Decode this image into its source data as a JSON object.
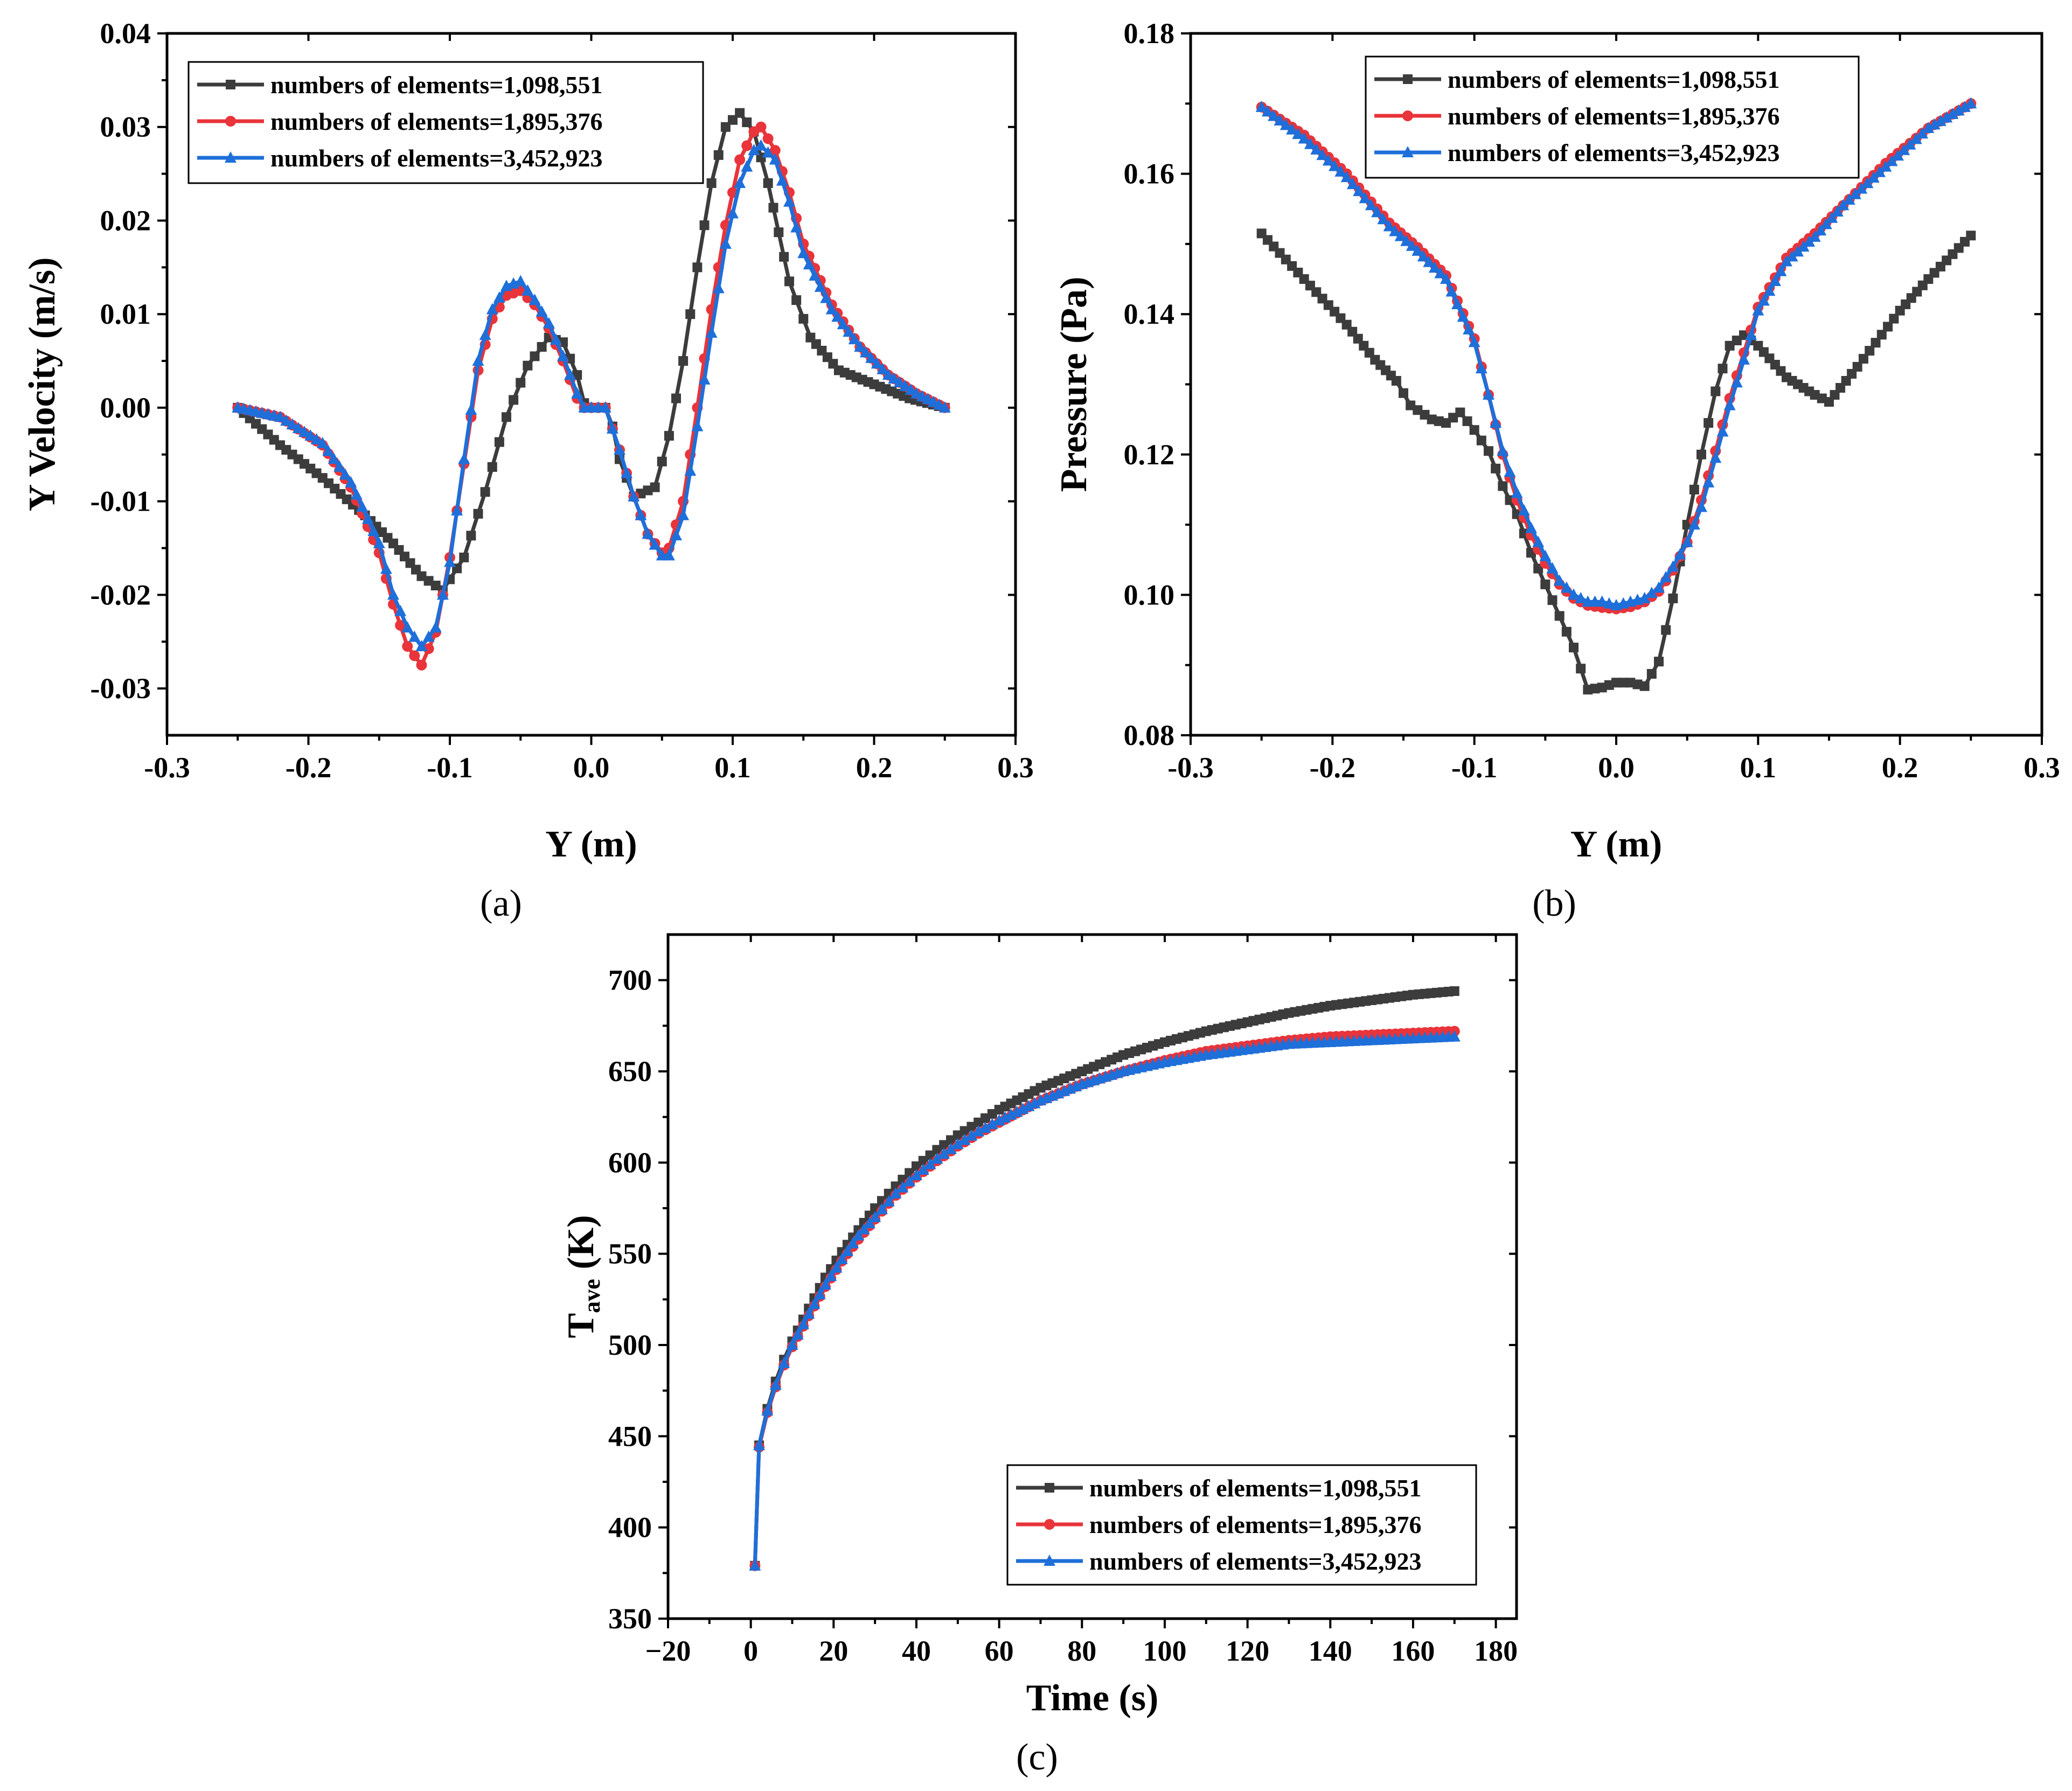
{
  "figure": {
    "colors": {
      "series_1": "#3c3c3c",
      "series_2": "#e8343a",
      "series_3": "#1e6fd9",
      "axes": "#000000"
    },
    "marker_shapes": [
      "square",
      "circle",
      "triangle"
    ]
  },
  "chart_data": [
    {
      "id": "a",
      "panel_label": "(a)",
      "type": "line",
      "title": "",
      "xlabel": "Y (m)",
      "ylabel": "Y Velocity (m/s)",
      "xlim": [
        -0.3,
        0.3
      ],
      "ylim": [
        -0.035,
        0.04
      ],
      "xticks": [
        -0.3,
        -0.2,
        -0.1,
        0.0,
        0.1,
        0.2,
        0.3
      ],
      "xtick_labels": [
        "-0.3",
        "-0.2",
        "-0.1",
        "0.0",
        "0.1",
        "0.2",
        "0.3"
      ],
      "yticks": [
        -0.03,
        -0.02,
        -0.01,
        0.0,
        0.01,
        0.02,
        0.03,
        0.04
      ],
      "ytick_labels": [
        "-0.03",
        "-0.02",
        "-0.01",
        "0.00",
        "0.01",
        "0.02",
        "0.03",
        "0.04"
      ],
      "legend_position": "top-left",
      "series": [
        {
          "name": "numbers of elements=1,098,551",
          "x": [
            -0.25,
            -0.22,
            -0.19,
            -0.16,
            -0.14,
            -0.12,
            -0.105,
            -0.09,
            -0.075,
            -0.06,
            -0.045,
            -0.03,
            -0.02,
            -0.01,
            -0.005,
            0.0,
            0.01,
            0.015,
            0.02,
            0.03,
            0.045,
            0.055,
            0.065,
            0.075,
            0.085,
            0.095,
            0.105,
            0.115,
            0.125,
            0.14,
            0.155,
            0.175,
            0.2,
            0.225,
            0.25
          ],
          "values": [
            0.0,
            -0.004,
            -0.0075,
            -0.0115,
            -0.0145,
            -0.018,
            -0.0195,
            -0.016,
            -0.009,
            -0.001,
            0.0045,
            0.0075,
            0.007,
            0.0035,
            0.0005,
            0.0,
            0.0,
            -0.002,
            -0.0055,
            -0.0095,
            -0.0085,
            -0.003,
            0.005,
            0.015,
            0.024,
            0.03,
            0.0315,
            0.0295,
            0.024,
            0.0135,
            0.0075,
            0.004,
            0.0025,
            0.001,
            0.0
          ]
        },
        {
          "name": "numbers of elements=1,895,376",
          "x": [
            -0.25,
            -0.22,
            -0.19,
            -0.17,
            -0.15,
            -0.14,
            -0.13,
            -0.12,
            -0.11,
            -0.1,
            -0.09,
            -0.08,
            -0.07,
            -0.06,
            -0.05,
            -0.04,
            -0.03,
            -0.02,
            -0.01,
            -0.005,
            0.0,
            0.01,
            0.02,
            0.03,
            0.04,
            0.05,
            0.055,
            0.065,
            0.075,
            0.085,
            0.095,
            0.105,
            0.115,
            0.12,
            0.13,
            0.14,
            0.15,
            0.17,
            0.19,
            0.21,
            0.23,
            0.25
          ],
          "values": [
            0.0,
            -0.001,
            -0.004,
            -0.0085,
            -0.0155,
            -0.021,
            -0.0255,
            -0.0275,
            -0.024,
            -0.016,
            -0.006,
            0.004,
            0.0095,
            0.012,
            0.0125,
            0.011,
            0.0085,
            0.005,
            0.001,
            0.0,
            0.0,
            0.0,
            -0.0045,
            -0.0095,
            -0.0135,
            -0.0155,
            -0.015,
            -0.01,
            0.0,
            0.0105,
            0.0195,
            0.0265,
            0.0295,
            0.03,
            0.0275,
            0.023,
            0.0175,
            0.011,
            0.0065,
            0.0035,
            0.0015,
            0.0
          ]
        },
        {
          "name": "numbers of elements=3,452,923",
          "x": [
            -0.25,
            -0.22,
            -0.19,
            -0.17,
            -0.15,
            -0.14,
            -0.13,
            -0.12,
            -0.11,
            -0.1,
            -0.09,
            -0.08,
            -0.07,
            -0.06,
            -0.05,
            -0.04,
            -0.03,
            -0.02,
            -0.01,
            -0.005,
            0.0,
            0.01,
            0.02,
            0.03,
            0.04,
            0.05,
            0.055,
            0.065,
            0.075,
            0.085,
            0.095,
            0.105,
            0.115,
            0.12,
            0.13,
            0.14,
            0.15,
            0.17,
            0.19,
            0.21,
            0.23,
            0.25
          ],
          "values": [
            0.0,
            -0.001,
            -0.0038,
            -0.008,
            -0.0145,
            -0.02,
            -0.0235,
            -0.0255,
            -0.0235,
            -0.0165,
            -0.0055,
            0.005,
            0.0105,
            0.013,
            0.0135,
            0.0115,
            0.009,
            0.0055,
            0.0015,
            0.0,
            0.0,
            0.0,
            -0.0045,
            -0.0095,
            -0.0135,
            -0.0158,
            -0.0158,
            -0.0115,
            -0.002,
            0.008,
            0.0175,
            0.024,
            0.0275,
            0.028,
            0.0265,
            0.022,
            0.0165,
            0.0105,
            0.0065,
            0.0035,
            0.0015,
            0.0
          ]
        }
      ]
    },
    {
      "id": "b",
      "panel_label": "(b)",
      "type": "line",
      "title": "",
      "xlabel": "Y (m)",
      "ylabel": "Pressure (Pa)",
      "xlim": [
        -0.3,
        0.3
      ],
      "ylim": [
        0.08,
        0.18
      ],
      "xticks": [
        -0.3,
        -0.2,
        -0.1,
        0.0,
        0.1,
        0.2,
        0.3
      ],
      "xtick_labels": [
        "-0.3",
        "-0.2",
        "-0.1",
        "0.0",
        "0.1",
        "0.2",
        "0.3"
      ],
      "yticks": [
        0.08,
        0.1,
        0.12,
        0.14,
        0.16,
        0.18
      ],
      "ytick_labels": [
        "0.08",
        "0.10",
        "0.12",
        "0.14",
        "0.16",
        "0.18"
      ],
      "legend_position": "top-right",
      "series": [
        {
          "name": "numbers of elements=1,098,551",
          "x": [
            -0.25,
            -0.22,
            -0.19,
            -0.17,
            -0.155,
            -0.145,
            -0.13,
            -0.12,
            -0.11,
            -0.1,
            -0.09,
            -0.08,
            -0.07,
            -0.06,
            -0.05,
            -0.04,
            -0.03,
            -0.02,
            -0.01,
            0.0,
            0.01,
            0.02,
            0.03,
            0.04,
            0.05,
            0.06,
            0.07,
            0.08,
            0.09,
            0.1,
            0.12,
            0.14,
            0.15,
            0.17,
            0.2,
            0.22,
            0.25
          ],
          "values": [
            0.1515,
            0.145,
            0.1385,
            0.1335,
            0.1305,
            0.127,
            0.125,
            0.1245,
            0.126,
            0.1235,
            0.1205,
            0.1155,
            0.1115,
            0.106,
            0.1015,
            0.097,
            0.0925,
            0.0865,
            0.0868,
            0.0875,
            0.0875,
            0.087,
            0.0905,
            0.0995,
            0.11,
            0.12,
            0.129,
            0.1355,
            0.137,
            0.1355,
            0.131,
            0.1285,
            0.1275,
            0.1325,
            0.1405,
            0.145,
            0.1512
          ]
        },
        {
          "name": "numbers of elements=1,895,376",
          "x": [
            -0.25,
            -0.22,
            -0.19,
            -0.16,
            -0.14,
            -0.12,
            -0.1,
            -0.09,
            -0.08,
            -0.07,
            -0.06,
            -0.05,
            -0.04,
            -0.03,
            -0.02,
            -0.01,
            0.0,
            0.01,
            0.02,
            0.03,
            0.04,
            0.05,
            0.06,
            0.07,
            0.08,
            0.09,
            0.1,
            0.12,
            0.14,
            0.16,
            0.19,
            0.22,
            0.25
          ],
          "values": [
            0.1695,
            0.1655,
            0.16,
            0.153,
            0.1495,
            0.1455,
            0.1365,
            0.1285,
            0.12,
            0.1135,
            0.1085,
            0.1045,
            0.1015,
            0.0995,
            0.0985,
            0.0982,
            0.098,
            0.0983,
            0.099,
            0.1005,
            0.1035,
            0.1075,
            0.1135,
            0.1205,
            0.128,
            0.1345,
            0.141,
            0.148,
            0.1515,
            0.1555,
            0.1615,
            0.1665,
            0.17
          ]
        },
        {
          "name": "numbers of elements=3,452,923",
          "x": [
            -0.25,
            -0.22,
            -0.19,
            -0.16,
            -0.14,
            -0.12,
            -0.1,
            -0.09,
            -0.08,
            -0.07,
            -0.06,
            -0.05,
            -0.04,
            -0.03,
            -0.02,
            -0.01,
            0.0,
            0.01,
            0.02,
            0.03,
            0.04,
            0.05,
            0.06,
            0.07,
            0.08,
            0.09,
            0.1,
            0.12,
            0.14,
            0.16,
            0.19,
            0.22,
            0.25
          ],
          "values": [
            0.1695,
            0.165,
            0.1595,
            0.1525,
            0.149,
            0.145,
            0.136,
            0.1285,
            0.1205,
            0.1145,
            0.1095,
            0.1055,
            0.102,
            0.1,
            0.099,
            0.099,
            0.0985,
            0.099,
            0.0995,
            0.101,
            0.104,
            0.1075,
            0.1125,
            0.1195,
            0.127,
            0.1335,
            0.1405,
            0.1475,
            0.151,
            0.1555,
            0.161,
            0.1665,
            0.17
          ]
        }
      ]
    },
    {
      "id": "c",
      "panel_label": "(c)",
      "type": "line",
      "title": "",
      "xlabel": "Time (s)",
      "ylabel_main": "T",
      "ylabel_sub": "ave",
      "ylabel_unit": " (K)",
      "xlim": [
        -20,
        185
      ],
      "ylim": [
        350,
        725
      ],
      "xticks": [
        -20,
        0,
        20,
        40,
        60,
        80,
        100,
        120,
        140,
        160,
        180
      ],
      "xtick_labels": [
        "−20",
        "0",
        "20",
        "40",
        "60",
        "80",
        "100",
        "120",
        "140",
        "160",
        "180"
      ],
      "yticks": [
        350,
        400,
        450,
        500,
        550,
        600,
        650,
        700
      ],
      "ytick_labels": [
        "350",
        "400",
        "450",
        "500",
        "550",
        "600",
        "650",
        "700"
      ],
      "legend_position": "bottom-right",
      "series": [
        {
          "name": "numbers of elements=1,098,551",
          "x": [
            1,
            2,
            4,
            6,
            8,
            10,
            14,
            18,
            22,
            26,
            30,
            35,
            40,
            45,
            50,
            55,
            60,
            70,
            80,
            90,
            100,
            110,
            120,
            130,
            140,
            150,
            160,
            170
          ],
          "values": [
            379,
            445,
            465,
            480,
            492,
            502,
            520,
            537,
            551,
            563,
            575,
            587,
            598,
            607,
            615,
            622,
            629,
            641,
            650,
            659,
            666,
            672,
            677,
            682,
            686,
            689,
            692,
            694
          ]
        },
        {
          "name": "numbers of elements=1,895,376",
          "x": [
            1,
            2,
            4,
            6,
            8,
            10,
            14,
            18,
            22,
            26,
            30,
            35,
            40,
            45,
            50,
            55,
            60,
            70,
            80,
            90,
            100,
            110,
            120,
            130,
            140,
            150,
            160,
            170
          ],
          "values": [
            379,
            444,
            463,
            477,
            489,
            499,
            516,
            532,
            546,
            558,
            569,
            582,
            592,
            601,
            609,
            616,
            622,
            634,
            643,
            650,
            656,
            661,
            664,
            667,
            669,
            670,
            671,
            672
          ]
        },
        {
          "name": "numbers of elements=3,452,923",
          "x": [
            1,
            2,
            4,
            6,
            8,
            10,
            14,
            18,
            22,
            26,
            30,
            35,
            40,
            45,
            50,
            55,
            60,
            70,
            80,
            90,
            100,
            110,
            120,
            130,
            140,
            150,
            160,
            170
          ],
          "values": [
            379,
            445,
            464,
            478,
            490,
            500,
            517,
            533,
            547,
            560,
            570,
            583,
            593,
            602,
            610,
            617,
            623,
            634,
            643,
            650,
            655,
            659,
            662,
            665,
            666,
            667,
            668,
            669
          ]
        }
      ]
    }
  ]
}
